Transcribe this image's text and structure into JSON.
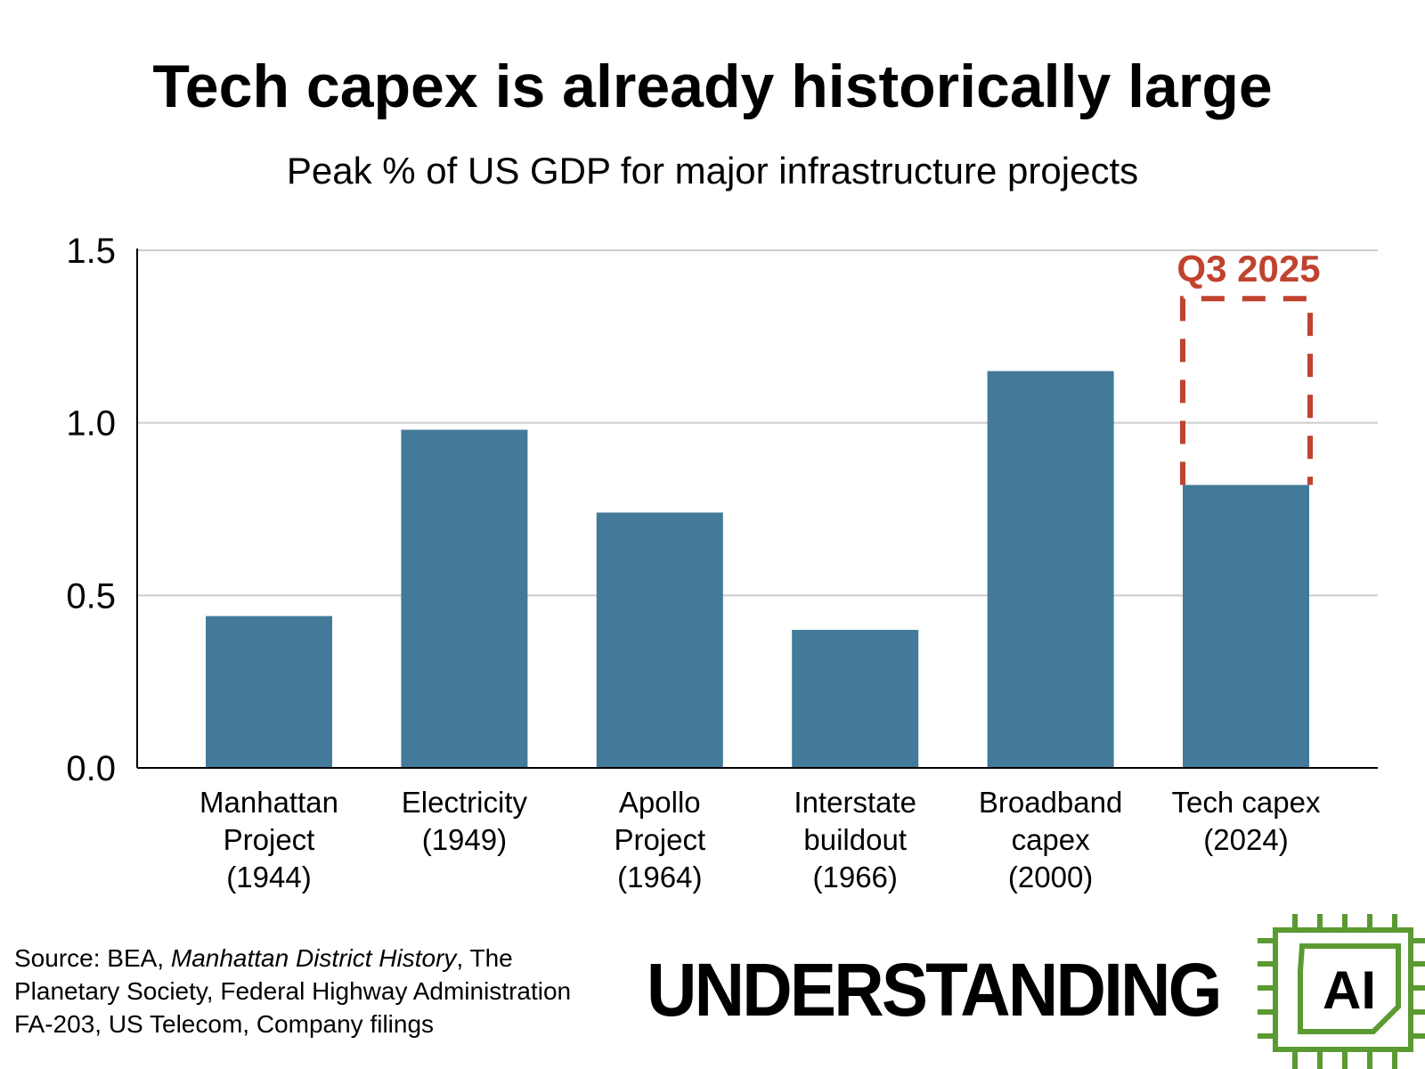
{
  "chart_data": {
    "type": "bar",
    "title": "Tech capex is already historically large",
    "subtitle": "Peak % of US GDP for major infrastructure projects",
    "xlabel": "",
    "ylabel": "",
    "ylim": [
      0,
      1.5
    ],
    "yticks": [
      "0.0",
      "0.5",
      "1.0",
      "1.5"
    ],
    "grid": true,
    "categories": [
      [
        "Manhattan",
        "Project",
        "(1944)"
      ],
      [
        "Electricity",
        "(1949)"
      ],
      [
        "Apollo",
        "Project",
        "(1964)"
      ],
      [
        "Interstate",
        "buildout",
        "(1966)"
      ],
      [
        "Broadband",
        "capex",
        "(2000)"
      ],
      [
        "Tech capex",
        "(2024)"
      ]
    ],
    "values": [
      0.44,
      0.98,
      0.74,
      0.4,
      1.15,
      0.82
    ],
    "bar_color": "#437a99",
    "annotation": {
      "label": "Q3 2025",
      "category_index": 5,
      "value": 1.36,
      "style": "dashed-outline",
      "color": "#c0432f"
    }
  },
  "source": {
    "prefix": "Source: BEA, ",
    "italic": "Manhattan District History",
    "line1_suffix": ", The",
    "line2": "Planetary Society, Federal Highway Administration",
    "line3": "FA-203, US Telecom, Company filings"
  },
  "logo": {
    "text": "UNDERSTANDING",
    "chip_text": "AI",
    "color": "#5a9a32"
  }
}
